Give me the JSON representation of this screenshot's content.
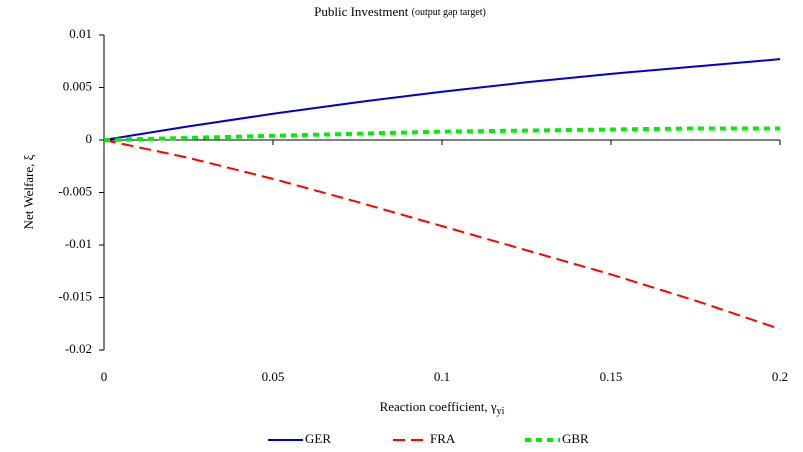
{
  "chart_data": {
    "type": "line",
    "title": "Public Investment",
    "subtitle": "(output gap target)",
    "x_label": "Reaction coefficient, γ",
    "x_label_subscript": "yi",
    "y_label": "Net Welfare, ξ",
    "x": [
      0,
      0.025,
      0.05,
      0.075,
      0.1,
      0.125,
      0.15,
      0.175,
      0.2
    ],
    "series": [
      {
        "name": "GER",
        "color": "#0000cc",
        "dash": "solid",
        "values": [
          0,
          0.0013,
          0.0025,
          0.0036,
          0.0046,
          0.0055,
          0.0063,
          0.007,
          0.0077
        ]
      },
      {
        "name": "FRA",
        "color": "#ff0000",
        "dash": "dashed",
        "values": [
          0,
          -0.0017,
          -0.0037,
          -0.0059,
          -0.0082,
          -0.0105,
          -0.0128,
          -0.0153,
          -0.018
        ]
      },
      {
        "name": "GBR",
        "color": "#00ee00",
        "dash": "dotted",
        "values": [
          0,
          0.0002,
          0.0004,
          0.0006,
          0.0008,
          0.0009,
          0.001,
          0.0011,
          0.0011
        ]
      }
    ],
    "xlim": [
      0,
      0.2
    ],
    "xticks": [
      0,
      0.05,
      0.1,
      0.15,
      0.2
    ],
    "ylim": [
      -0.02,
      0.01
    ],
    "yticks": [
      0.01,
      0.005,
      0,
      -0.005,
      -0.01,
      -0.015,
      -0.02
    ],
    "legend": "bottom"
  }
}
